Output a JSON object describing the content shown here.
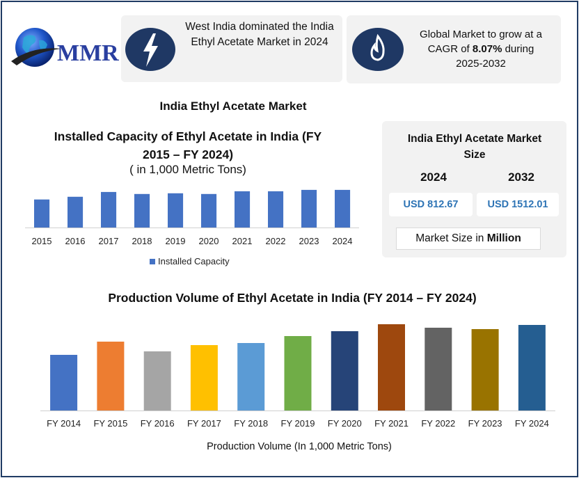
{
  "logo": {
    "text": "MMR"
  },
  "highlights": [
    {
      "icon": "lightning-icon",
      "text": "West India dominated the India Ethyl Acetate Market in 2024"
    },
    {
      "icon": "flame-icon",
      "text_before": "Global Market to grow at a CAGR of ",
      "cagr": "8.07%",
      "text_after": " during 2025-2032"
    }
  ],
  "main_title": "India Ethyl Acetate Market",
  "market_size": {
    "title": "India Ethyl Acetate Market Size",
    "years": [
      "2024",
      "2032"
    ],
    "values": [
      "USD 812.67",
      "USD 1512.01"
    ],
    "unit_prefix": "Market Size in ",
    "unit_bold": "Million"
  },
  "chart_data": [
    {
      "type": "bar",
      "title": "Installed Capacity of Ethyl Acetate in India (FY 2015 – FY 2024)",
      "subtitle": "( in 1,000 Metric Tons)",
      "categories": [
        "2015",
        "2016",
        "2017",
        "2018",
        "2019",
        "2020",
        "2021",
        "2022",
        "2023",
        "2024"
      ],
      "series": [
        {
          "name": "Installed Capacity",
          "values": [
            41,
            45,
            52,
            49,
            50,
            49,
            53,
            53,
            55,
            55
          ],
          "color": "#4472c4"
        }
      ],
      "ylim": [
        0,
        60
      ],
      "legend": "bottom",
      "grid": false
    },
    {
      "type": "bar",
      "title": "Production Volume of Ethyl Acetate in India (FY 2014 – FY 2024)",
      "xlabel": "Production Volume (In 1,000 Metric Tons)",
      "categories": [
        "FY 2014",
        "FY 2015",
        "FY 2016",
        "FY 2017",
        "FY 2018",
        "FY 2019",
        "FY 2020",
        "FY 2021",
        "FY 2022",
        "FY 2023",
        "FY 2024"
      ],
      "values": [
        80,
        99,
        85,
        94,
        97,
        107,
        114,
        124,
        119,
        117,
        123
      ],
      "colors": [
        "#4472c4",
        "#ed7d31",
        "#a5a5a5",
        "#ffc000",
        "#5b9bd5",
        "#70ad47",
        "#264478",
        "#9e480e",
        "#636363",
        "#997300",
        "#255e91"
      ],
      "ylim": [
        0,
        125
      ],
      "grid": false
    }
  ]
}
